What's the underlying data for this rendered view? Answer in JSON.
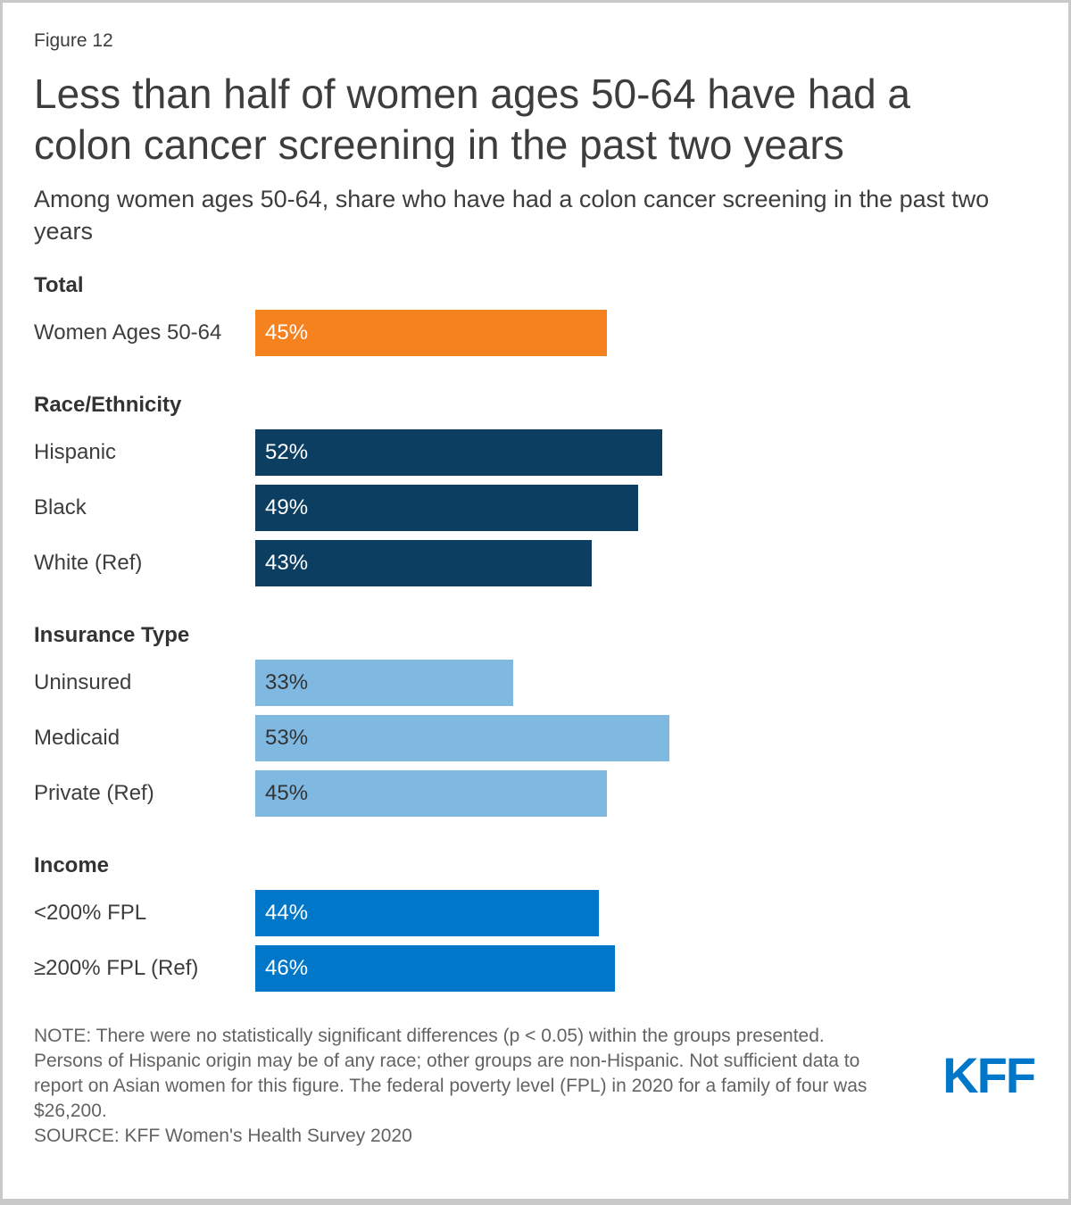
{
  "figure_label": "Figure 12",
  "title": "Less than half of women ages 50-64 have had a colon cancer screening in the past two years",
  "subtitle": "Among women ages 50-64, share who have had a colon cancer screening in the past two years",
  "note": "NOTE: There were no statistically significant differences (p < 0.05) within the groups presented. Persons of Hispanic origin may be of any race; other groups are non-Hispanic. Not sufficient data to report on Asian women for this figure. The federal poverty level (FPL) in 2020 for a family of four was $26,200.",
  "source": "SOURCE: KFF Women's Health Survey 2020",
  "logo_text": "KFF",
  "colors": {
    "orange": "#F5821F",
    "navy": "#0C3E62",
    "light_blue": "#7FB9E2",
    "blue": "#0077C8",
    "kff_logo_blue": "#0077C8",
    "value_text_light": "#FFFFFF",
    "value_text_dark": "#333333"
  },
  "chart_data": {
    "type": "bar",
    "orientation": "horizontal",
    "unit": "percent",
    "xlim": [
      0,
      100
    ],
    "grid": false,
    "legend": false,
    "title": "Less than half of women ages 50-64 have had a colon cancer screening in the past two years",
    "subtitle": "Among women ages 50-64, share who have had a colon cancer screening in the past two years",
    "groups": [
      {
        "label": "Total",
        "color": "#F5821F",
        "value_color": "#FFFFFF",
        "bars": [
          {
            "label": "Women Ages 50-64",
            "value": 45,
            "display": "45%"
          }
        ]
      },
      {
        "label": "Race/Ethnicity",
        "color": "#0C3E62",
        "value_color": "#FFFFFF",
        "bars": [
          {
            "label": "Hispanic",
            "value": 52,
            "display": "52%"
          },
          {
            "label": "Black",
            "value": 49,
            "display": "49%"
          },
          {
            "label": "White (Ref)",
            "value": 43,
            "display": "43%"
          }
        ]
      },
      {
        "label": "Insurance Type",
        "color": "#7FB9E2",
        "value_color": "#333333",
        "bars": [
          {
            "label": "Uninsured",
            "value": 33,
            "display": "33%"
          },
          {
            "label": "Medicaid",
            "value": 53,
            "display": "53%"
          },
          {
            "label": "Private (Ref)",
            "value": 45,
            "display": "45%"
          }
        ]
      },
      {
        "label": "Income",
        "color": "#0077C8",
        "value_color": "#FFFFFF",
        "bars": [
          {
            "label": "<200% FPL",
            "value": 44,
            "display": "44%"
          },
          {
            "label": "≥200% FPL (Ref)",
            "value": 46,
            "display": "46%"
          }
        ]
      }
    ]
  }
}
